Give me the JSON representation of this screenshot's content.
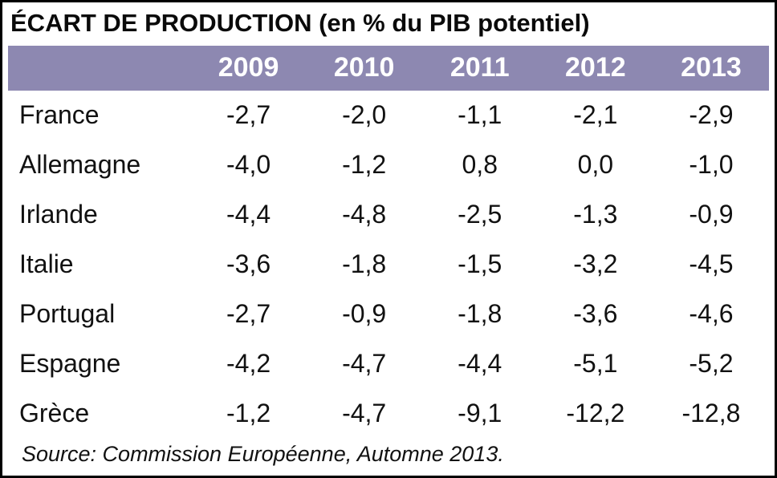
{
  "title": "ÉCART DE PRODUCTION (en % du PIB potentiel)",
  "source": "Source: Commission Européenne, Automne 2013.",
  "colors": {
    "header_bg": "#8d88b1",
    "header_text": "#ffffff",
    "border": "#000000"
  },
  "chart_data": {
    "type": "table",
    "title": "ÉCART DE PRODUCTION (en % du PIB potentiel)",
    "columns": [
      "",
      "2009",
      "2010",
      "2011",
      "2012",
      "2013"
    ],
    "rows": [
      {
        "label": "France",
        "values": [
          "-2,7",
          "-2,0",
          "-1,1",
          "-2,1",
          "-2,9"
        ]
      },
      {
        "label": "Allemagne",
        "values": [
          "-4,0",
          "-1,2",
          "0,8",
          "0,0",
          "-1,0"
        ]
      },
      {
        "label": "Irlande",
        "values": [
          "-4,4",
          "-4,8",
          "-2,5",
          "-1,3",
          "-0,9"
        ]
      },
      {
        "label": "Italie",
        "values": [
          "-3,6",
          "-1,8",
          "-1,5",
          "-3,2",
          "-4,5"
        ]
      },
      {
        "label": "Portugal",
        "values": [
          "-2,7",
          "-0,9",
          "-1,8",
          "-3,6",
          "-4,6"
        ]
      },
      {
        "label": "Espagne",
        "values": [
          "-4,2",
          "-4,7",
          "-4,4",
          "-5,1",
          "-5,2"
        ]
      },
      {
        "label": "Grèce",
        "values": [
          "-1,2",
          "-4,7",
          "-9,1",
          "-12,2",
          "-12,8"
        ]
      }
    ],
    "source": "Source: Commission Européenne, Automne 2013.",
    "legend": "none",
    "grid": "off"
  }
}
